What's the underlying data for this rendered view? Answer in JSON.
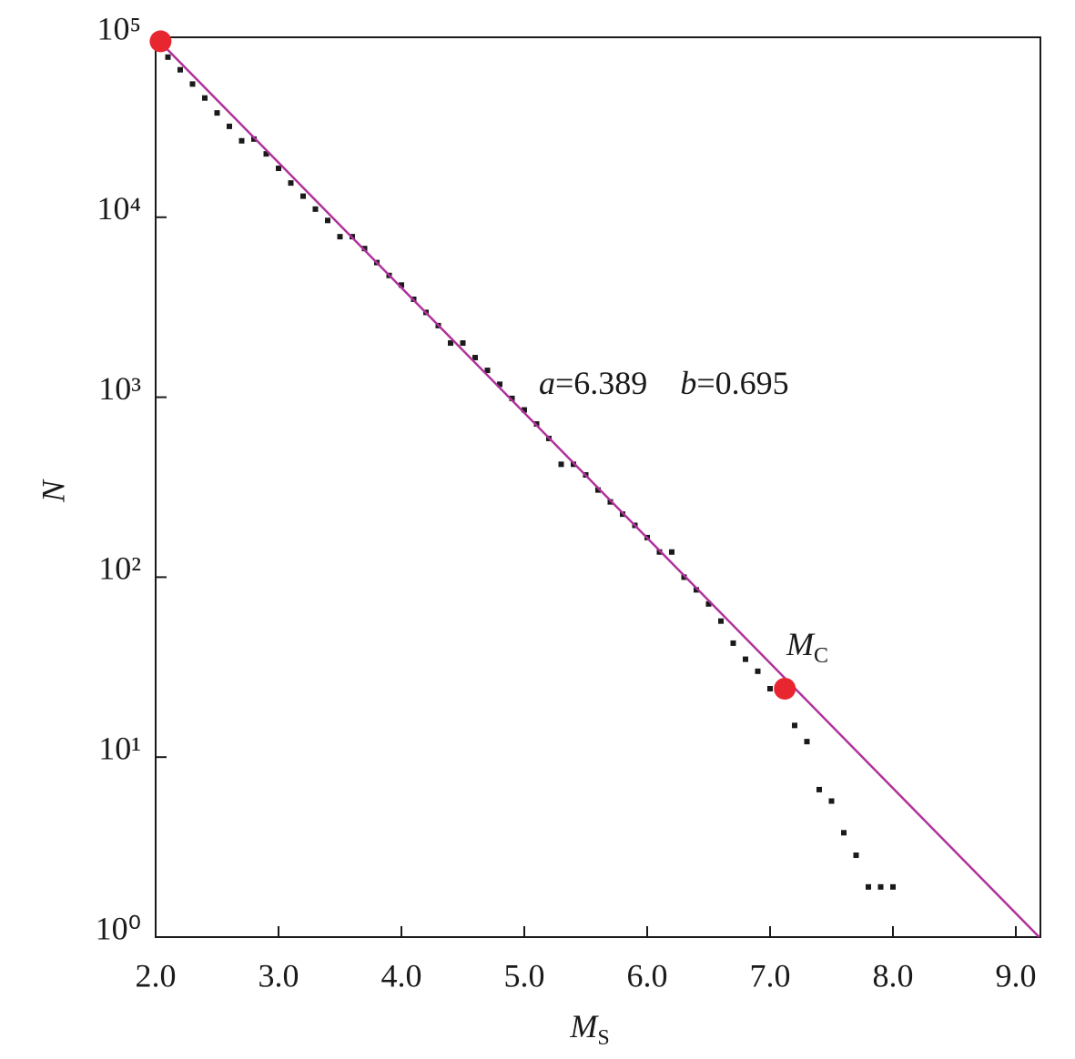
{
  "chart_data": {
    "type": "scatter",
    "ylabel": "N",
    "xlabel": {
      "text": "M",
      "subscript": "S"
    },
    "xlim": [
      2.0,
      9.2
    ],
    "xticks": [
      {
        "value": 2,
        "label": "2.0"
      },
      {
        "value": 3,
        "label": "3.0"
      },
      {
        "value": 4,
        "label": "4.0"
      },
      {
        "value": 5,
        "label": "5.0"
      },
      {
        "value": 6,
        "label": "6.0"
      },
      {
        "value": 7,
        "label": "7.0"
      },
      {
        "value": 8,
        "label": "8.0"
      },
      {
        "value": 9,
        "label": "9.0"
      }
    ],
    "ylim": [
      1,
      100000
    ],
    "yscale": "log",
    "yticks": [
      {
        "value": 1,
        "label": "10⁰"
      },
      {
        "value": 10,
        "label": "10¹"
      },
      {
        "value": 100,
        "label": "10²"
      },
      {
        "value": 1000,
        "label": "10³"
      },
      {
        "value": 10000,
        "label": "10⁴"
      },
      {
        "value": 100000,
        "label": "10⁵"
      }
    ],
    "series": [
      {
        "mode": "markers",
        "color": "#1a1a1a",
        "x": [
          2.1,
          2.2,
          2.3,
          2.4,
          2.5,
          2.6,
          2.7,
          2.8,
          2.9,
          3.0,
          3.1,
          3.2,
          3.3,
          3.4,
          3.5,
          3.6,
          3.7,
          3.8,
          3.9,
          4.0,
          4.1,
          4.2,
          4.3,
          4.4,
          4.5,
          4.6,
          4.7,
          4.8,
          4.9,
          5.0,
          5.1,
          5.2,
          5.3,
          5.4,
          5.5,
          5.6,
          5.7,
          5.8,
          5.9,
          6.0,
          6.1,
          6.2,
          6.3,
          6.4,
          6.5,
          6.6,
          6.7,
          6.8,
          6.9,
          7.0,
          7.1,
          7.2,
          7.3,
          7.4,
          7.5,
          7.6,
          7.7,
          7.8,
          7.9,
          8.0
        ],
        "values": [
          77600,
          66000,
          55000,
          46000,
          38000,
          32000,
          26600,
          27200,
          22500,
          18700,
          15500,
          13100,
          11100,
          9600,
          7800,
          7800,
          6700,
          5600,
          4750,
          4200,
          3500,
          2960,
          2500,
          2000,
          2000,
          1660,
          1410,
          1180,
          985,
          850,
          710,
          590,
          424,
          424,
          370,
          305,
          262,
          224,
          194,
          166,
          138,
          138,
          100,
          85,
          71,
          57,
          43,
          35,
          30,
          24,
          23,
          15,
          12.2,
          6.6,
          5.7,
          3.8,
          2.85,
          1.9,
          1.9,
          1.9
        ]
      },
      {
        "mode": "line",
        "color": "#b0309a",
        "x": [
          2.0,
          9.19
        ],
        "values": [
          99770,
          1.0
        ]
      },
      {
        "mode": "points",
        "color": "#e8262f",
        "x": [
          2.04,
          7.12
        ],
        "values": [
          95000,
          24
        ]
      }
    ],
    "fit_label": {
      "a_name": "a",
      "a_value": "=6.389",
      "b_name": "b",
      "b_value": "=0.695"
    },
    "mc_label": {
      "text": "M",
      "subscript": "C"
    }
  }
}
